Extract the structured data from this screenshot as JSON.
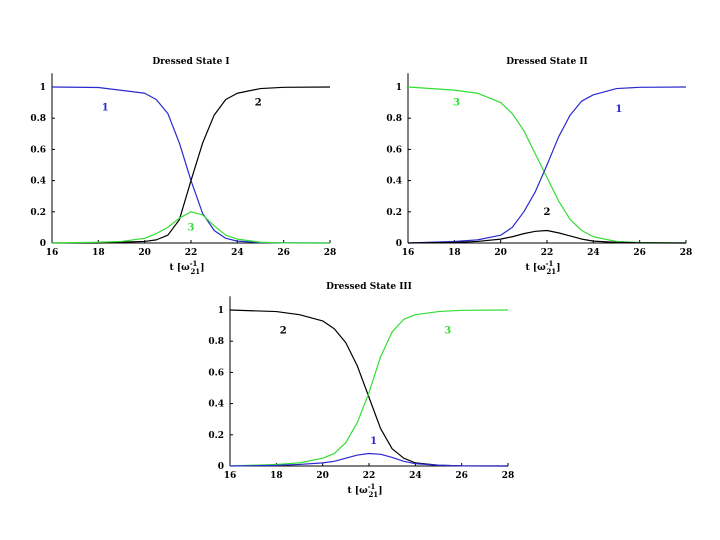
{
  "chart_data": [
    {
      "type": "line",
      "title": "Dressed State I",
      "xlabel": "t [ω21-1]",
      "xlim": [
        16,
        28
      ],
      "ylim": [
        0,
        1.05
      ],
      "x_ticks": [
        "16",
        "18",
        "20",
        "22",
        "24",
        "26",
        "28"
      ],
      "y_ticks": [
        "0",
        "0.2",
        "0.4",
        "0.6",
        "0.8",
        "1"
      ],
      "series": [
        {
          "name": "1",
          "color": "#2a2ad0",
          "x": [
            16,
            18,
            20,
            20.5,
            21,
            21.5,
            22,
            22.5,
            23,
            23.5,
            24,
            25,
            26,
            28
          ],
          "y": [
            1.0,
            0.997,
            0.96,
            0.92,
            0.83,
            0.64,
            0.4,
            0.19,
            0.08,
            0.03,
            0.012,
            0.003,
            0.001,
            0.0
          ]
        },
        {
          "name": "2",
          "color": "#000000",
          "x": [
            16,
            18,
            20,
            20.5,
            21,
            21.5,
            22,
            22.5,
            23,
            23.5,
            24,
            25,
            26,
            28
          ],
          "y": [
            0.0,
            0.0,
            0.01,
            0.02,
            0.05,
            0.15,
            0.4,
            0.64,
            0.82,
            0.92,
            0.96,
            0.99,
            0.998,
            1.0
          ]
        },
        {
          "name": "3",
          "color": "#33dd33",
          "x": [
            16,
            18,
            19,
            20,
            20.5,
            21,
            21.5,
            22,
            22.5,
            23,
            23.5,
            24,
            25,
            26,
            28
          ],
          "y": [
            0.0,
            0.005,
            0.01,
            0.03,
            0.06,
            0.1,
            0.16,
            0.2,
            0.18,
            0.11,
            0.05,
            0.025,
            0.005,
            0.001,
            0.0
          ]
        }
      ],
      "curve_labels": [
        {
          "text": "1",
          "color": "#2a2ad0",
          "x": 18.3,
          "y": 0.85
        },
        {
          "text": "2",
          "color": "#000000",
          "x": 24.9,
          "y": 0.88
        },
        {
          "text": "3",
          "color": "#33dd33",
          "x": 22.0,
          "y": 0.08
        }
      ]
    },
    {
      "type": "line",
      "title": "Dressed State II",
      "xlabel": "t [ω21-1]",
      "xlim": [
        16,
        28
      ],
      "ylim": [
        0,
        1.05
      ],
      "x_ticks": [
        "16",
        "18",
        "20",
        "22",
        "24",
        "26",
        "28"
      ],
      "y_ticks": [
        "0",
        "0.2",
        "0.4",
        "0.6",
        "0.8",
        "1"
      ],
      "series": [
        {
          "name": "3",
          "color": "#33dd33",
          "x": [
            16,
            18,
            19,
            20,
            20.5,
            21,
            21.5,
            22,
            22.5,
            23,
            23.5,
            24,
            25,
            26,
            28
          ],
          "y": [
            1.0,
            0.98,
            0.96,
            0.9,
            0.83,
            0.72,
            0.57,
            0.42,
            0.27,
            0.15,
            0.08,
            0.04,
            0.01,
            0.003,
            0.0
          ]
        },
        {
          "name": "1",
          "color": "#2a2ad0",
          "x": [
            16,
            18,
            19,
            20,
            20.5,
            21,
            21.5,
            22,
            22.5,
            23,
            23.5,
            24,
            25,
            26,
            28
          ],
          "y": [
            0.0,
            0.01,
            0.02,
            0.05,
            0.1,
            0.2,
            0.33,
            0.5,
            0.68,
            0.82,
            0.91,
            0.95,
            0.99,
            0.998,
            1.0
          ]
        },
        {
          "name": "2",
          "color": "#000000",
          "x": [
            16,
            18,
            19,
            20,
            20.5,
            21,
            21.5,
            22,
            22.5,
            23,
            23.5,
            24,
            25,
            26,
            28
          ],
          "y": [
            0.0,
            0.004,
            0.01,
            0.025,
            0.04,
            0.06,
            0.075,
            0.08,
            0.065,
            0.045,
            0.025,
            0.012,
            0.004,
            0.001,
            0.0
          ]
        }
      ],
      "curve_labels": [
        {
          "text": "3",
          "color": "#33dd33",
          "x": 18.1,
          "y": 0.88
        },
        {
          "text": "1",
          "color": "#2a2ad0",
          "x": 25.1,
          "y": 0.84
        },
        {
          "text": "2",
          "color": "#000000",
          "x": 22.0,
          "y": 0.18
        }
      ]
    },
    {
      "type": "line",
      "title": "Dressed State III",
      "xlabel": "t [ω21-1]",
      "xlim": [
        16,
        28
      ],
      "ylim": [
        0,
        1.05
      ],
      "x_ticks": [
        "16",
        "18",
        "20",
        "22",
        "24",
        "26",
        "28"
      ],
      "y_ticks": [
        "0",
        "0.2",
        "0.4",
        "0.6",
        "0.8",
        "1"
      ],
      "series": [
        {
          "name": "2",
          "color": "#000000",
          "x": [
            16,
            18,
            19,
            20,
            20.5,
            21,
            21.5,
            22,
            22.5,
            23,
            23.5,
            24,
            25,
            26,
            28
          ],
          "y": [
            1.0,
            0.99,
            0.97,
            0.93,
            0.88,
            0.79,
            0.64,
            0.44,
            0.24,
            0.11,
            0.05,
            0.02,
            0.005,
            0.001,
            0.0
          ]
        },
        {
          "name": "3",
          "color": "#33dd33",
          "x": [
            16,
            18,
            19,
            20,
            20.5,
            21,
            21.5,
            22,
            22.5,
            23,
            23.5,
            24,
            25,
            26,
            28
          ],
          "y": [
            0.0,
            0.01,
            0.02,
            0.05,
            0.08,
            0.15,
            0.28,
            0.47,
            0.7,
            0.86,
            0.94,
            0.97,
            0.99,
            0.998,
            1.0
          ]
        },
        {
          "name": "1",
          "color": "#2a2ad0",
          "x": [
            16,
            18,
            19,
            20,
            20.5,
            21,
            21.5,
            22,
            22.5,
            23,
            23.5,
            24,
            25,
            26,
            28
          ],
          "y": [
            0.0,
            0.004,
            0.01,
            0.02,
            0.03,
            0.05,
            0.07,
            0.08,
            0.075,
            0.055,
            0.03,
            0.015,
            0.005,
            0.001,
            0.0
          ]
        }
      ],
      "curve_labels": [
        {
          "text": "2",
          "color": "#000000",
          "x": 18.3,
          "y": 0.85
        },
        {
          "text": "3",
          "color": "#33dd33",
          "x": 25.4,
          "y": 0.85
        },
        {
          "text": "1",
          "color": "#2a2ad0",
          "x": 22.2,
          "y": 0.14
        }
      ]
    }
  ]
}
